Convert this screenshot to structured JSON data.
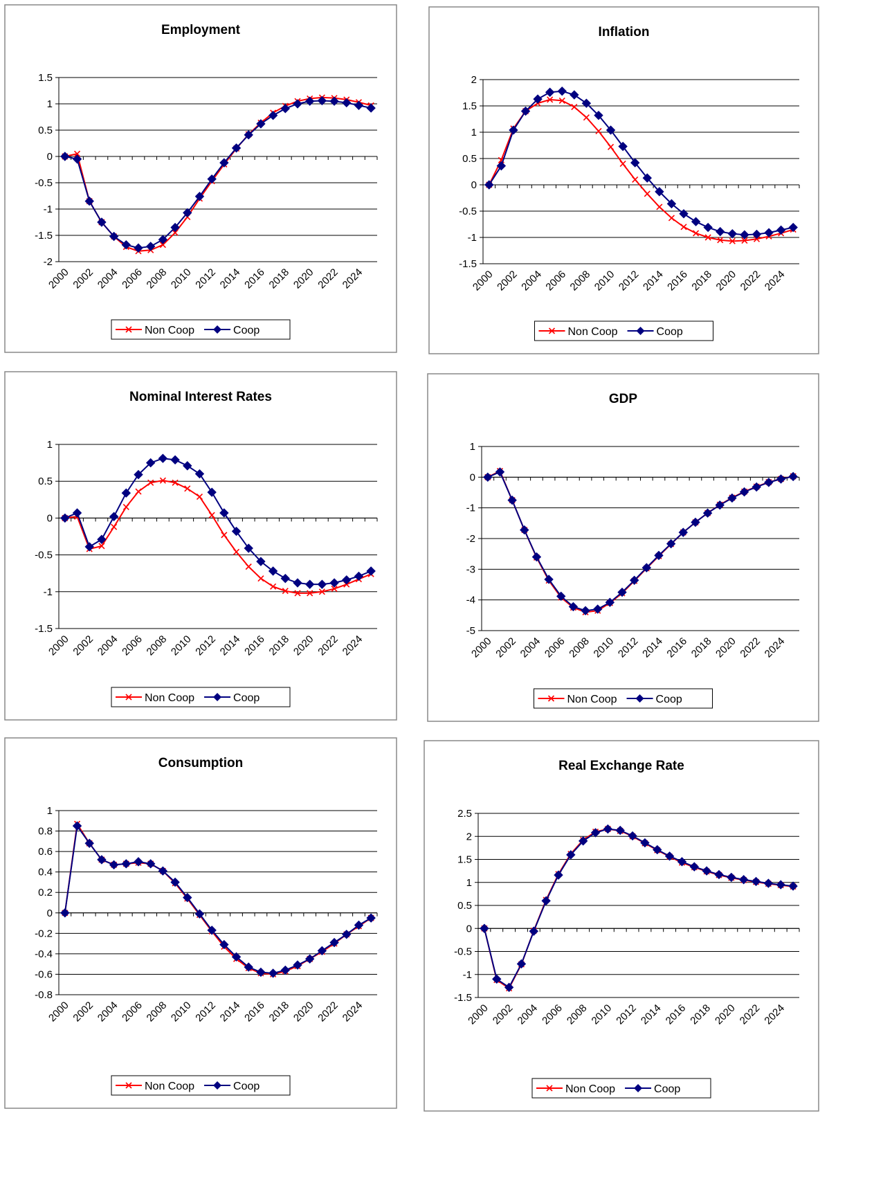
{
  "chart_data": [
    {
      "type": "line",
      "title": "Employment",
      "categories": [
        "2000",
        null,
        "2002",
        null,
        "2004",
        null,
        "2006",
        null,
        "2008",
        null,
        "2010",
        null,
        "2012",
        null,
        "2014",
        null,
        "2016",
        null,
        "2018",
        null,
        "2020",
        null,
        "2022",
        null,
        "2024",
        null
      ],
      "ylim": [
        -2,
        1.5
      ],
      "yticks": [
        -2,
        -1.5,
        -1,
        -0.5,
        0,
        0.5,
        1,
        1.5
      ],
      "grid": true,
      "legend": "bottom",
      "series": [
        {
          "name": "Non Coop",
          "color": "#ff0000",
          "marker": "x",
          "values": [
            0,
            0.05,
            -0.85,
            -1.25,
            -1.52,
            -1.72,
            -1.8,
            -1.78,
            -1.68,
            -1.45,
            -1.15,
            -0.8,
            -0.47,
            -0.15,
            0.15,
            0.42,
            0.64,
            0.83,
            0.96,
            1.05,
            1.1,
            1.12,
            1.11,
            1.08,
            1.03,
            0.97
          ]
        },
        {
          "name": "Coop",
          "color": "#000080",
          "marker": "diamond",
          "values": [
            0,
            -0.05,
            -0.85,
            -1.25,
            -1.52,
            -1.68,
            -1.74,
            -1.71,
            -1.58,
            -1.35,
            -1.07,
            -0.76,
            -0.43,
            -0.12,
            0.16,
            0.41,
            0.62,
            0.78,
            0.91,
            1.0,
            1.05,
            1.06,
            1.05,
            1.02,
            0.97,
            0.92
          ]
        }
      ]
    },
    {
      "type": "line",
      "title": "Inflation",
      "categories": [
        "2000",
        null,
        "2002",
        null,
        "2004",
        null,
        "2006",
        null,
        "2008",
        null,
        "2010",
        null,
        "2012",
        null,
        "2014",
        null,
        "2016",
        null,
        "2018",
        null,
        "2020",
        null,
        "2022",
        null,
        "2024",
        null
      ],
      "ylim": [
        -1.5,
        2
      ],
      "yticks": [
        -1.5,
        -1,
        -0.5,
        0,
        0.5,
        1,
        1.5,
        2
      ],
      "grid": true,
      "legend": "bottom",
      "series": [
        {
          "name": "Non Coop",
          "color": "#ff0000",
          "marker": "x",
          "values": [
            0,
            0.47,
            1.07,
            1.4,
            1.55,
            1.62,
            1.6,
            1.48,
            1.28,
            1.02,
            0.72,
            0.4,
            0.1,
            -0.17,
            -0.42,
            -0.63,
            -0.8,
            -0.92,
            -1.0,
            -1.05,
            -1.07,
            -1.06,
            -1.03,
            -0.98,
            -0.92,
            -0.85
          ]
        },
        {
          "name": "Coop",
          "color": "#000080",
          "marker": "diamond",
          "values": [
            0,
            0.36,
            1.04,
            1.4,
            1.63,
            1.76,
            1.78,
            1.71,
            1.55,
            1.32,
            1.04,
            0.73,
            0.42,
            0.13,
            -0.13,
            -0.36,
            -0.55,
            -0.7,
            -0.81,
            -0.89,
            -0.93,
            -0.95,
            -0.94,
            -0.91,
            -0.86,
            -0.81
          ]
        }
      ]
    },
    {
      "type": "line",
      "title": "Nominal Interest Rates",
      "categories": [
        "2000",
        null,
        "2002",
        null,
        "2004",
        null,
        "2006",
        null,
        "2008",
        null,
        "2010",
        null,
        "2012",
        null,
        "2014",
        null,
        "2016",
        null,
        "2018",
        null,
        "2020",
        null,
        "2022",
        null,
        "2024",
        null
      ],
      "ylim": [
        -1.5,
        1
      ],
      "yticks": [
        -1.5,
        -1,
        -0.5,
        0,
        0.5,
        1
      ],
      "grid": true,
      "legend": "bottom",
      "series": [
        {
          "name": "Non Coop",
          "color": "#ff0000",
          "marker": "x",
          "values": [
            0,
            0.02,
            -0.42,
            -0.38,
            -0.12,
            0.15,
            0.36,
            0.48,
            0.51,
            0.48,
            0.4,
            0.29,
            0.04,
            -0.23,
            -0.46,
            -0.66,
            -0.82,
            -0.93,
            -0.99,
            -1.02,
            -1.02,
            -1.0,
            -0.96,
            -0.9,
            -0.83,
            -0.76
          ]
        },
        {
          "name": "Coop",
          "color": "#000080",
          "marker": "diamond",
          "values": [
            0,
            0.07,
            -0.39,
            -0.29,
            0.02,
            0.34,
            0.59,
            0.75,
            0.81,
            0.79,
            0.71,
            0.6,
            0.35,
            0.07,
            -0.18,
            -0.41,
            -0.59,
            -0.72,
            -0.82,
            -0.88,
            -0.9,
            -0.9,
            -0.88,
            -0.84,
            -0.79,
            -0.72
          ]
        }
      ]
    },
    {
      "type": "line",
      "title": "GDP",
      "categories": [
        "2000",
        null,
        "2002",
        null,
        "2004",
        null,
        "2006",
        null,
        "2008",
        null,
        "2010",
        null,
        "2012",
        null,
        "2014",
        null,
        "2016",
        null,
        "2018",
        null,
        "2020",
        null,
        "2022",
        null,
        "2024",
        null
      ],
      "ylim": [
        -5,
        1
      ],
      "yticks": [
        -5,
        -4,
        -3,
        -2,
        -1,
        0,
        1
      ],
      "grid": true,
      "legend": "bottom",
      "series": [
        {
          "name": "Non Coop",
          "color": "#ff0000",
          "marker": "x",
          "values": [
            0,
            0.2,
            -0.75,
            -1.72,
            -2.62,
            -3.37,
            -3.92,
            -4.25,
            -4.4,
            -4.35,
            -4.1,
            -3.78,
            -3.38,
            -2.97,
            -2.57,
            -2.18,
            -1.8,
            -1.47,
            -1.17,
            -0.9,
            -0.67,
            -0.47,
            -0.31,
            -0.16,
            -0.06,
            0.03
          ]
        },
        {
          "name": "Coop",
          "color": "#000080",
          "marker": "diamond",
          "values": [
            0,
            0.17,
            -0.75,
            -1.72,
            -2.6,
            -3.33,
            -3.88,
            -4.22,
            -4.35,
            -4.3,
            -4.08,
            -3.75,
            -3.36,
            -2.95,
            -2.55,
            -2.17,
            -1.8,
            -1.47,
            -1.17,
            -0.91,
            -0.68,
            -0.48,
            -0.32,
            -0.17,
            -0.06,
            0.02
          ]
        }
      ]
    },
    {
      "type": "line",
      "title": "Consumption",
      "categories": [
        "2000",
        null,
        "2002",
        null,
        "2004",
        null,
        "2006",
        null,
        "2008",
        null,
        "2010",
        null,
        "2012",
        null,
        "2014",
        null,
        "2016",
        null,
        "2018",
        null,
        "2020",
        null,
        "2022",
        null,
        "2024",
        null
      ],
      "ylim": [
        -0.8,
        1
      ],
      "yticks": [
        -0.8,
        -0.6,
        -0.4,
        -0.2,
        0,
        0.2,
        0.4,
        0.6,
        0.8,
        1
      ],
      "grid": true,
      "legend": "bottom",
      "series": [
        {
          "name": "Non Coop",
          "color": "#ff0000",
          "marker": "x",
          "values": [
            0,
            0.87,
            0.68,
            0.52,
            0.47,
            0.48,
            0.49,
            0.48,
            0.41,
            0.29,
            0.14,
            -0.02,
            -0.18,
            -0.33,
            -0.45,
            -0.54,
            -0.59,
            -0.6,
            -0.57,
            -0.52,
            -0.45,
            -0.38,
            -0.3,
            -0.21,
            -0.13,
            -0.05
          ]
        },
        {
          "name": "Coop",
          "color": "#000080",
          "marker": "diamond",
          "values": [
            0,
            0.85,
            0.68,
            0.52,
            0.47,
            0.48,
            0.5,
            0.48,
            0.41,
            0.3,
            0.15,
            -0.01,
            -0.17,
            -0.31,
            -0.43,
            -0.53,
            -0.58,
            -0.59,
            -0.56,
            -0.51,
            -0.45,
            -0.37,
            -0.29,
            -0.21,
            -0.12,
            -0.05
          ]
        }
      ]
    },
    {
      "type": "line",
      "title": "Real Exchange Rate",
      "categories": [
        "2000",
        null,
        "2002",
        null,
        "2004",
        null,
        "2006",
        null,
        "2008",
        null,
        "2010",
        null,
        "2012",
        null,
        "2014",
        null,
        "2016",
        null,
        "2018",
        null,
        "2020",
        null,
        "2022",
        null,
        "2024",
        null
      ],
      "ylim": [
        -1.5,
        2.5
      ],
      "yticks": [
        -1.5,
        -1,
        -0.5,
        0,
        0.5,
        1,
        1.5,
        2,
        2.5
      ],
      "grid": true,
      "legend": "bottom",
      "series": [
        {
          "name": "Non Coop",
          "color": "#ff0000",
          "marker": "x",
          "values": [
            0,
            -1.12,
            -1.3,
            -0.78,
            -0.05,
            0.62,
            1.18,
            1.62,
            1.92,
            2.1,
            2.16,
            2.12,
            2.0,
            1.85,
            1.7,
            1.56,
            1.43,
            1.33,
            1.24,
            1.16,
            1.1,
            1.05,
            1.01,
            0.97,
            0.94,
            0.91
          ]
        },
        {
          "name": "Coop",
          "color": "#000080",
          "marker": "diamond",
          "values": [
            0,
            -1.1,
            -1.28,
            -0.77,
            -0.06,
            0.6,
            1.16,
            1.6,
            1.9,
            2.08,
            2.16,
            2.13,
            2.01,
            1.86,
            1.71,
            1.57,
            1.45,
            1.34,
            1.25,
            1.17,
            1.11,
            1.06,
            1.02,
            0.98,
            0.95,
            0.92
          ]
        }
      ]
    }
  ]
}
